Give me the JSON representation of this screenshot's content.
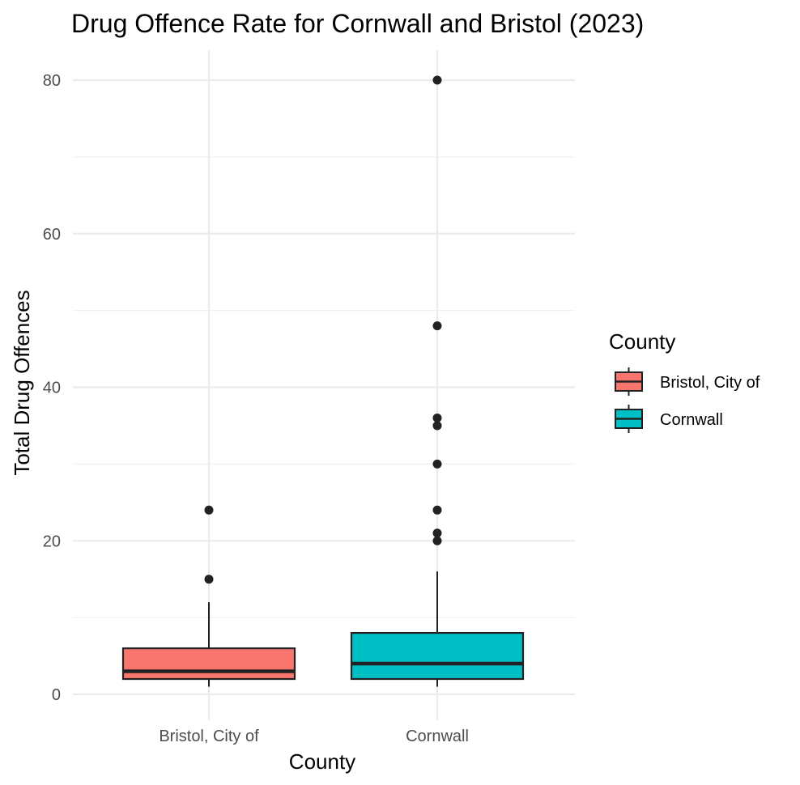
{
  "chart_data": {
    "type": "boxplot",
    "title": "Drug Offence Rate for Cornwall and Bristol (2023)",
    "xlabel": "County",
    "ylabel": "Total Drug Offences",
    "ylim": [
      -4,
      84
    ],
    "yticks": [
      0,
      20,
      40,
      60,
      80
    ],
    "y_minor_ticks": [
      10,
      30,
      50,
      70
    ],
    "grid": true,
    "categories": [
      "Bristol, City of",
      "Cornwall"
    ],
    "series": [
      {
        "name": "Bristol, City of",
        "color": "#F8766D",
        "min": 1,
        "q1": 2,
        "median": 3,
        "q3": 6,
        "whisker_high": 12,
        "outliers": [
          15,
          24
        ]
      },
      {
        "name": "Cornwall",
        "color": "#00BFC4",
        "min": 1,
        "q1": 2,
        "median": 4,
        "q3": 8,
        "whisker_high": 16,
        "outliers": [
          20,
          21,
          24,
          30,
          35,
          36,
          48,
          80
        ]
      }
    ],
    "legend": {
      "title": "County",
      "position": "right",
      "items": [
        "Bristol, City of",
        "Cornwall"
      ]
    }
  }
}
